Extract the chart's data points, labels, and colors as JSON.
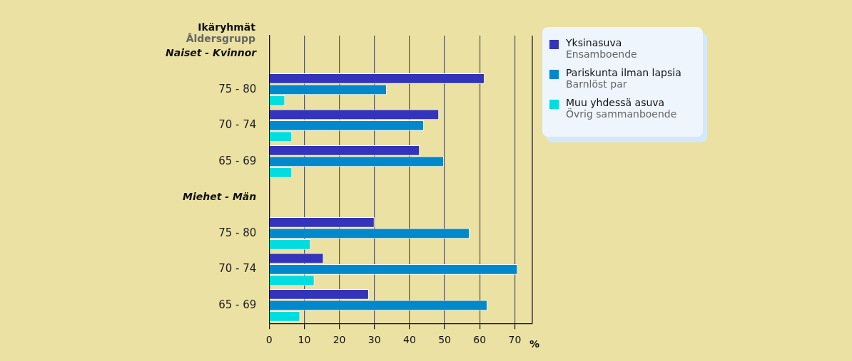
{
  "chart_data": {
    "type": "bar",
    "orientation": "horizontal",
    "ylabel": "Ikäryhmät\nÅldersgrupp",
    "xlabel": "%",
    "categories": [
      "Naiset - Kvinnor",
      "75 - 80",
      "70 - 74",
      "65 - 69",
      "Miehet - Män",
      "75 - 80",
      "70 - 74",
      "65 - 69"
    ],
    "series": [
      {
        "name": "Yksinasuva\nEnsamboende",
        "color": "#3333bb",
        "values": [
          null,
          61.4,
          48.4,
          42.9,
          null,
          30.0,
          15.5,
          28.4
        ]
      },
      {
        "name": "Pariskunta ilman lapsia\nBarnlöst par",
        "color": "#0088cc",
        "values": [
          null,
          33.5,
          44.1,
          49.8,
          null,
          57.1,
          70.8,
          62.2
        ]
      },
      {
        "name": "Muu yhdessä asuva\nÖvrig sammanboende",
        "color": "#00dde0",
        "values": [
          null,
          4.5,
          6.5,
          6.5,
          null,
          11.8,
          12.9,
          8.8
        ]
      }
    ],
    "xlim": [
      0,
      75
    ],
    "xticks": [
      0,
      10,
      20,
      30,
      40,
      50,
      60,
      70
    ],
    "grid": "x",
    "legend": "top right"
  }
}
